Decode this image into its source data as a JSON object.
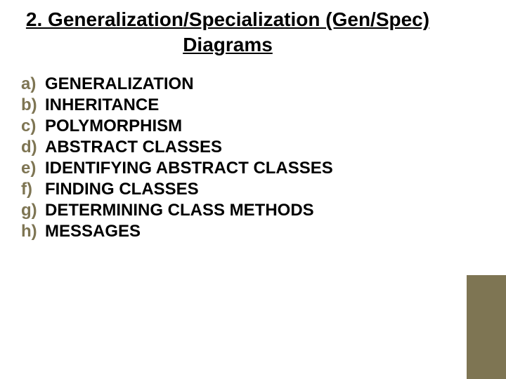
{
  "title": "2. Generalization/Specialization (Gen/Spec) Diagrams",
  "list": {
    "items": [
      {
        "marker": "a)",
        "text": "GENERALIZATION"
      },
      {
        "marker": "b)",
        "text": "INHERITANCE"
      },
      {
        "marker": "c)",
        "text": "POLYMORPHISM"
      },
      {
        "marker": "d)",
        "text": "ABSTRACT CLASSES"
      },
      {
        "marker": "e)",
        "text": "IDENTIFYING ABSTRACT CLASSES"
      },
      {
        "marker": "f)",
        "text": "FINDING CLASSES"
      },
      {
        "marker": "g)",
        "text": "DETERMINING CLASS METHODS"
      },
      {
        "marker": "h)",
        "text": "MESSAGES"
      }
    ]
  },
  "style": {
    "title_fontsize": 28,
    "title_color": "#000000",
    "title_underline": true,
    "marker_color": "#7e7553",
    "marker_fontsize": 24,
    "marker_fontweight": "bold",
    "item_color": "#000000",
    "item_fontsize": 24,
    "item_fontweight": "bold",
    "background_color": "#ffffff",
    "accent_color": "#7e7553",
    "accent_width": 56,
    "accent_height": 148,
    "slide_width": 720,
    "slide_height": 540
  }
}
